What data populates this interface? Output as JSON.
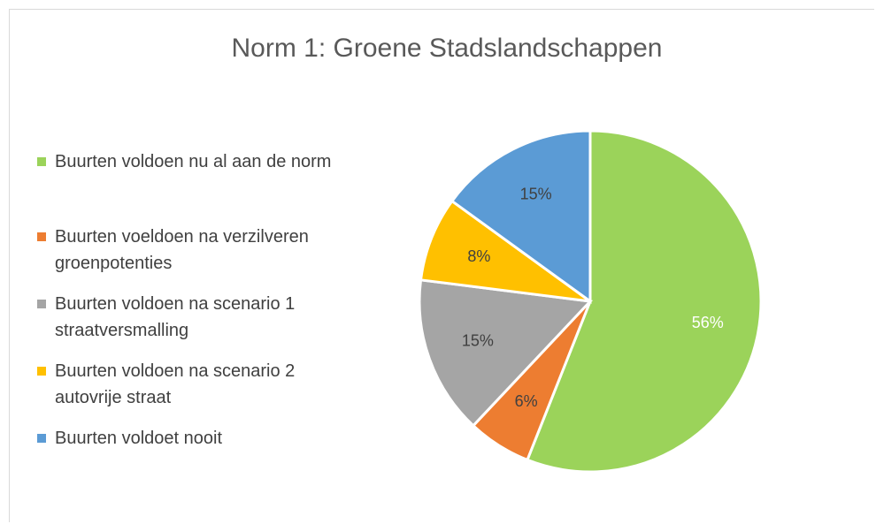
{
  "chart_data": {
    "type": "pie",
    "title": "Norm 1: Groene Stadslandschappen",
    "categories": [
      "Buurten voldoen nu al aan de norm",
      "Buurten voeldoen na verzilveren groenpotenties",
      "Buurten voldoen na scenario 1 straatversmalling",
      "Buurten voldoen na scenario 2 autovrije straat",
      "Buurten voldoet nooit"
    ],
    "values": [
      56,
      6,
      15,
      8,
      15
    ],
    "value_labels": [
      "56%",
      "6%",
      "15%",
      "8%",
      "15%"
    ],
    "colors": [
      "#9bd35a",
      "#ed7d31",
      "#a5a5a5",
      "#ffc000",
      "#5b9bd5"
    ],
    "legend": "left"
  }
}
